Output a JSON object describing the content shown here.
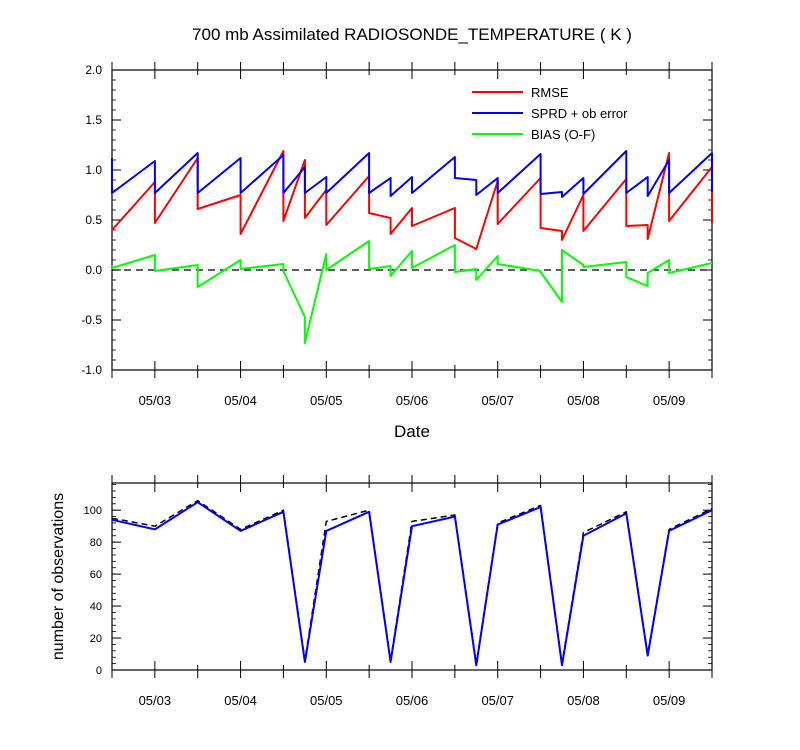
{
  "chart_data": [
    {
      "type": "line",
      "title": "700 mb Assimilated RADIOSONDE_TEMPERATURE ( K )",
      "xlabel": "Date",
      "ylabel": "",
      "xlim": [
        2.5,
        9.5
      ],
      "ylim": [
        -1.0,
        2.0
      ],
      "y_ticks": [
        "2.0",
        "1.5",
        "1.0",
        "0.5",
        "0.0",
        "-0.5",
        "-1.0"
      ],
      "x_tick_labels": [
        "05/03",
        "05/04",
        "05/05",
        "05/06",
        "05/07",
        "05/08",
        "05/09"
      ],
      "zero_line": "dashed",
      "legend_position": "top-right",
      "series": [
        {
          "name": "RMSE",
          "color": "#ff0000",
          "points": [
            [
              2.5,
              0.4
            ],
            [
              3.0,
              0.88
            ],
            [
              3.0,
              0.47
            ],
            [
              3.5,
              1.12
            ],
            [
              3.5,
              0.61
            ],
            [
              4.0,
              0.75
            ],
            [
              4.0,
              0.36
            ],
            [
              4.5,
              1.19
            ],
            [
              4.5,
              0.49
            ],
            [
              4.75,
              1.1
            ],
            [
              4.75,
              0.52
            ],
            [
              5.0,
              0.8
            ],
            [
              5.0,
              0.45
            ],
            [
              5.5,
              0.94
            ],
            [
              5.5,
              0.57
            ],
            [
              5.75,
              0.52
            ],
            [
              5.75,
              0.36
            ],
            [
              6.0,
              0.62
            ],
            [
              6.0,
              0.44
            ],
            [
              6.5,
              0.62
            ],
            [
              6.5,
              0.32
            ],
            [
              6.75,
              0.21
            ],
            [
              7.0,
              0.89
            ],
            [
              7.0,
              0.46
            ],
            [
              7.5,
              0.92
            ],
            [
              7.5,
              0.42
            ],
            [
              7.75,
              0.39
            ],
            [
              7.75,
              0.3
            ],
            [
              8.0,
              0.75
            ],
            [
              8.0,
              0.39
            ],
            [
              8.5,
              0.91
            ],
            [
              8.5,
              0.44
            ],
            [
              8.75,
              0.45
            ],
            [
              8.75,
              0.31
            ],
            [
              9.0,
              1.17
            ],
            [
              9.0,
              0.49
            ],
            [
              9.5,
              1.03
            ],
            [
              9.5,
              0.47
            ]
          ]
        },
        {
          "name": "SPRD + ob error",
          "color": "#0000ff",
          "points": [
            [
              2.5,
              1.12
            ],
            [
              2.5,
              0.77
            ],
            [
              3.0,
              1.09
            ],
            [
              3.0,
              0.77
            ],
            [
              3.5,
              1.17
            ],
            [
              3.5,
              0.77
            ],
            [
              4.0,
              1.12
            ],
            [
              4.0,
              0.77
            ],
            [
              4.5,
              1.15
            ],
            [
              4.5,
              0.77
            ],
            [
              4.75,
              1.03
            ],
            [
              4.75,
              0.77
            ],
            [
              5.0,
              0.93
            ],
            [
              5.0,
              0.77
            ],
            [
              5.5,
              1.17
            ],
            [
              5.5,
              0.77
            ],
            [
              5.75,
              0.92
            ],
            [
              5.75,
              0.74
            ],
            [
              6.0,
              0.93
            ],
            [
              6.0,
              0.77
            ],
            [
              6.5,
              1.13
            ],
            [
              6.5,
              0.92
            ],
            [
              6.75,
              0.9
            ],
            [
              6.75,
              0.75
            ],
            [
              7.0,
              0.92
            ],
            [
              7.0,
              0.77
            ],
            [
              7.5,
              1.16
            ],
            [
              7.5,
              0.76
            ],
            [
              7.75,
              0.78
            ],
            [
              7.75,
              0.73
            ],
            [
              8.0,
              0.92
            ],
            [
              8.0,
              0.76
            ],
            [
              8.5,
              1.19
            ],
            [
              8.5,
              0.77
            ],
            [
              8.75,
              0.93
            ],
            [
              8.75,
              0.74
            ],
            [
              9.0,
              1.1
            ],
            [
              9.0,
              0.77
            ],
            [
              9.5,
              1.17
            ],
            [
              9.5,
              0.78
            ]
          ]
        },
        {
          "name": "BIAS (O-F)",
          "color": "#00ff00",
          "points": [
            [
              2.5,
              0.05
            ],
            [
              2.5,
              0.02
            ],
            [
              3.0,
              0.15
            ],
            [
              3.0,
              -0.01
            ],
            [
              3.5,
              0.05
            ],
            [
              3.5,
              -0.17
            ],
            [
              4.0,
              0.1
            ],
            [
              4.0,
              0.01
            ],
            [
              4.5,
              0.06
            ],
            [
              4.5,
              -0.01
            ],
            [
              4.75,
              -0.47
            ],
            [
              4.75,
              -0.73
            ],
            [
              5.0,
              0.16
            ],
            [
              5.0,
              0.0
            ],
            [
              5.5,
              0.29
            ],
            [
              5.5,
              0.01
            ],
            [
              5.75,
              0.04
            ],
            [
              5.75,
              -0.06
            ],
            [
              6.0,
              0.19
            ],
            [
              6.0,
              0.02
            ],
            [
              6.5,
              0.25
            ],
            [
              6.5,
              -0.02
            ],
            [
              6.75,
              0.01
            ],
            [
              6.75,
              -0.1
            ],
            [
              7.0,
              0.14
            ],
            [
              7.0,
              0.06
            ],
            [
              7.5,
              -0.01
            ],
            [
              7.5,
              -0.02
            ],
            [
              7.75,
              -0.32
            ],
            [
              7.75,
              0.2
            ],
            [
              8.0,
              0.05
            ],
            [
              8.0,
              0.03
            ],
            [
              8.5,
              0.08
            ],
            [
              8.5,
              -0.07
            ],
            [
              8.75,
              -0.16
            ],
            [
              8.75,
              -0.03
            ],
            [
              9.0,
              0.1
            ],
            [
              9.0,
              -0.03
            ],
            [
              9.5,
              0.07
            ]
          ]
        }
      ]
    },
    {
      "type": "line",
      "title": "",
      "xlabel": "",
      "ylabel": "number of observations",
      "xlim": [
        2.5,
        9.5
      ],
      "ylim": [
        0,
        117
      ],
      "y_ticks": [
        "0",
        "20",
        "40",
        "60",
        "80",
        "100"
      ],
      "x_tick_labels": [
        "05/03",
        "05/04",
        "05/05",
        "05/06",
        "05/07",
        "05/08",
        "05/09"
      ],
      "series": [
        {
          "style": "dashed",
          "color": "#000000",
          "points": [
            [
              2.5,
              95
            ],
            [
              3.0,
              90
            ],
            [
              3.5,
              106
            ],
            [
              4.0,
              88
            ],
            [
              4.5,
              100
            ],
            [
              4.75,
              6
            ],
            [
              5.0,
              93
            ],
            [
              5.5,
              100
            ],
            [
              5.75,
              6
            ],
            [
              6.0,
              93
            ],
            [
              6.5,
              97
            ],
            [
              6.75,
              4
            ],
            [
              7.0,
              92
            ],
            [
              7.5,
              103
            ],
            [
              7.75,
              4
            ],
            [
              8.0,
              86
            ],
            [
              8.5,
              99
            ],
            [
              8.75,
              10
            ],
            [
              9.0,
              88
            ],
            [
              9.5,
              101
            ]
          ]
        },
        {
          "style": "solid",
          "color": "#0000ff",
          "points": [
            [
              2.5,
              94
            ],
            [
              3.0,
              88
            ],
            [
              3.5,
              105
            ],
            [
              4.0,
              87
            ],
            [
              4.5,
              99
            ],
            [
              4.75,
              5
            ],
            [
              5.0,
              87
            ],
            [
              5.5,
              99
            ],
            [
              5.75,
              5
            ],
            [
              6.0,
              90
            ],
            [
              6.5,
              96
            ],
            [
              6.75,
              3
            ],
            [
              7.0,
              91
            ],
            [
              7.5,
              102
            ],
            [
              7.75,
              3
            ],
            [
              8.0,
              84
            ],
            [
              8.5,
              98
            ],
            [
              8.75,
              9
            ],
            [
              9.0,
              87
            ],
            [
              9.5,
              100
            ]
          ]
        }
      ]
    }
  ]
}
